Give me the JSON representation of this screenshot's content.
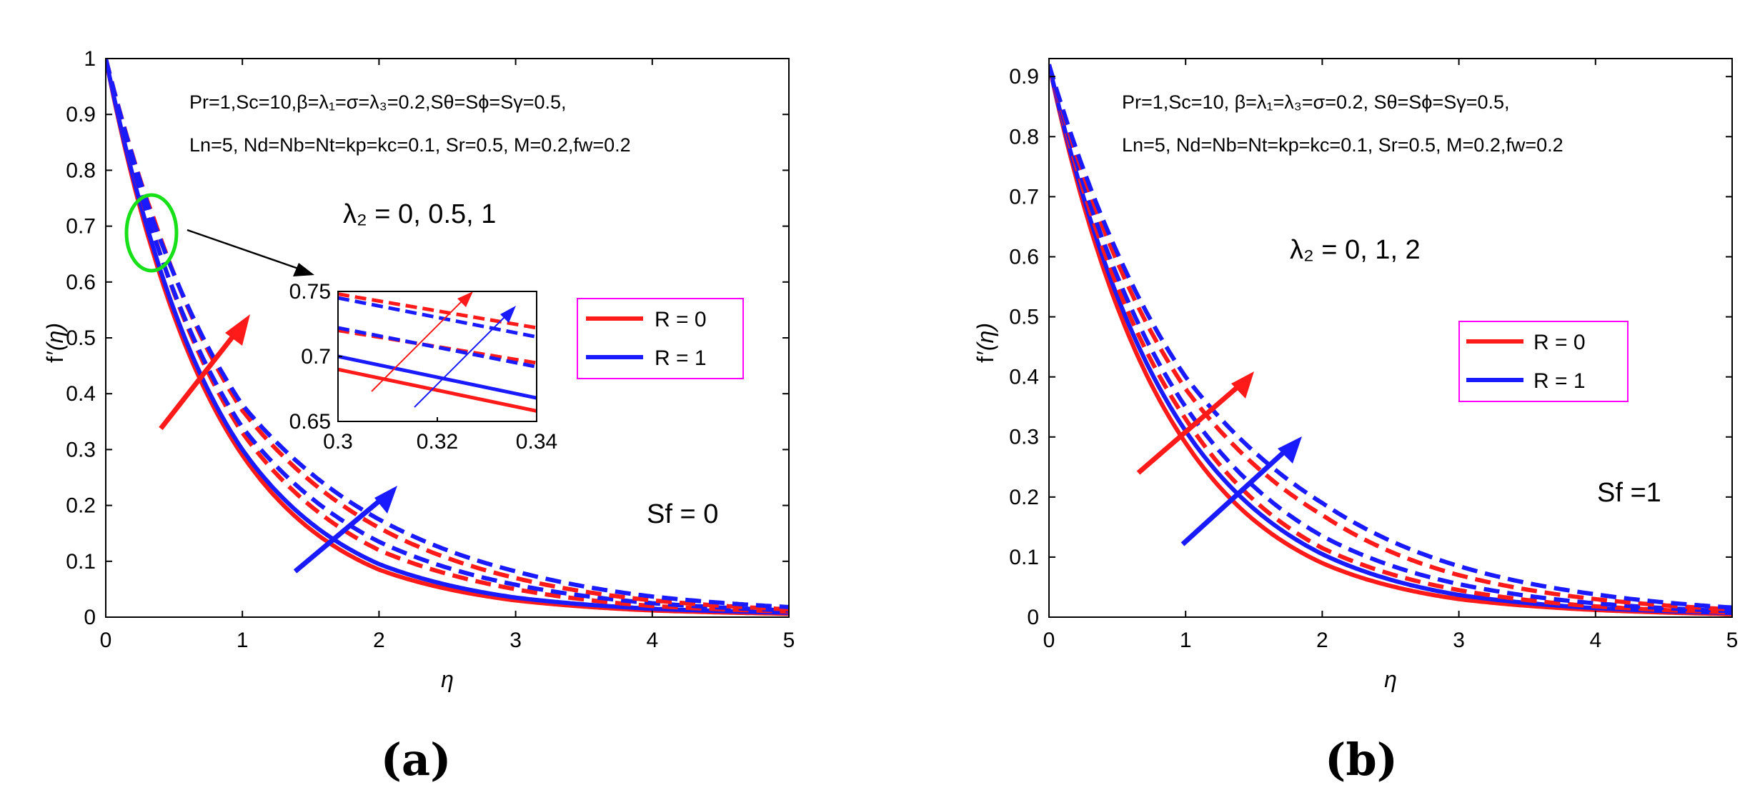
{
  "chart_data": [
    {
      "panel_label": "(a)",
      "type": "line",
      "xlabel": "η",
      "ylabel_base": "f",
      "ylabel_arg": "(η)",
      "xlim": [
        0,
        5
      ],
      "ylim": [
        0,
        1
      ],
      "xticks": [
        "0",
        "1",
        "2",
        "3",
        "4",
        "5"
      ],
      "yticks": [
        "0",
        "0.1",
        "0.2",
        "0.3",
        "0.4",
        "0.5",
        "0.6",
        "0.7",
        "0.8",
        "0.9",
        "1"
      ],
      "f0": 1.0,
      "params_line1": "Pr=1,Sc=10,β=λ₁=σ=λ₃=0.2,Sθ=Sϕ=Sγ=0.5,",
      "params_line2": "Ln=5, Nd=Nb=Nt=kp=kc=0.1, Sr=0.5, M=0.2,fw=0.2",
      "lambda_label": "λ₂ = 0, 0.5, 1",
      "lambda_values": [
        0,
        0.5,
        1
      ],
      "sf_label": "Sf = 0",
      "legend": [
        {
          "name": "R = 0",
          "color": "#ff1a1a"
        },
        {
          "name": "R = 1",
          "color": "#1a1aff"
        }
      ],
      "series": [
        {
          "R": 0,
          "lambda2": 0,
          "style": "solid",
          "color": "#ff1a1a",
          "x": [
            0,
            0.3,
            0.34,
            1,
            2,
            3,
            4,
            5
          ],
          "y": [
            1.0,
            0.69,
            0.658,
            0.29,
            0.085,
            0.03,
            0.012,
            0.006
          ]
        },
        {
          "R": 1,
          "lambda2": 0,
          "style": "solid",
          "color": "#1a1aff",
          "x": [
            0,
            0.3,
            0.34,
            1,
            2,
            3,
            4,
            5
          ],
          "y": [
            1.0,
            0.7,
            0.668,
            0.3,
            0.095,
            0.035,
            0.015,
            0.008
          ]
        },
        {
          "R": 0,
          "lambda2": 0.5,
          "style": "dashed",
          "color": "#ff1a1a",
          "x": [
            0,
            0.3,
            0.34,
            1,
            2,
            3,
            4,
            5
          ],
          "y": [
            1.0,
            0.72,
            0.695,
            0.33,
            0.12,
            0.05,
            0.02,
            0.01
          ]
        },
        {
          "R": 1,
          "lambda2": 0.5,
          "style": "dashed",
          "color": "#1a1aff",
          "x": [
            0,
            0.3,
            0.34,
            1,
            2,
            3,
            4,
            5
          ],
          "y": [
            1.0,
            0.722,
            0.692,
            0.34,
            0.135,
            0.058,
            0.025,
            0.012
          ]
        },
        {
          "R": 0,
          "lambda2": 1,
          "style": "dashed",
          "color": "#ff1a1a",
          "x": [
            0,
            0.3,
            0.34,
            1,
            2,
            3,
            4,
            5
          ],
          "y": [
            1.0,
            0.748,
            0.722,
            0.37,
            0.16,
            0.07,
            0.03,
            0.014
          ]
        },
        {
          "R": 1,
          "lambda2": 1,
          "style": "dashed",
          "color": "#1a1aff",
          "x": [
            0,
            0.3,
            0.34,
            1,
            2,
            3,
            4,
            5
          ],
          "y": [
            1.0,
            0.745,
            0.715,
            0.38,
            0.175,
            0.082,
            0.037,
            0.018
          ]
        }
      ],
      "inset": {
        "xlim": [
          0.3,
          0.34
        ],
        "ylim": [
          0.65,
          0.75
        ],
        "xticks": [
          "0.3",
          "0.32",
          "0.34"
        ],
        "yticks": [
          "0.65",
          "0.7",
          "0.75"
        ]
      }
    },
    {
      "panel_label": "(b)",
      "type": "line",
      "xlabel": "η",
      "ylabel_base": "f",
      "ylabel_arg": "(η)",
      "xlim": [
        0,
        5
      ],
      "ylim": [
        0,
        0.93
      ],
      "xticks": [
        "0",
        "1",
        "2",
        "3",
        "4",
        "5"
      ],
      "yticks": [
        "0",
        "0.1",
        "0.2",
        "0.3",
        "0.4",
        "0.5",
        "0.6",
        "0.7",
        "0.8",
        "0.9"
      ],
      "f0": 0.92,
      "params_line1": "Pr=1,Sc=10, β=λ₁=λ₃=σ=0.2, Sθ=Sϕ=Sγ=0.5,",
      "params_line2": "Ln=5, Nd=Nb=Nt=kp=kc=0.1, Sr=0.5, M=0.2,fw=0.2",
      "lambda_label": "λ₂ = 0, 1, 2",
      "lambda_values": [
        0,
        1,
        2
      ],
      "sf_label": "Sf =1",
      "legend": [
        {
          "name": "R = 0",
          "color": "#ff1a1a"
        },
        {
          "name": "R = 1",
          "color": "#1a1aff"
        }
      ],
      "series": [
        {
          "R": 0,
          "lambda2": 0,
          "style": "solid",
          "color": "#ff1a1a",
          "x": [
            0,
            1,
            2,
            3,
            4,
            5
          ],
          "y": [
            0.92,
            0.29,
            0.09,
            0.03,
            0.012,
            0.005
          ]
        },
        {
          "R": 1,
          "lambda2": 0,
          "style": "solid",
          "color": "#1a1aff",
          "x": [
            0,
            1,
            2,
            3,
            4,
            5
          ],
          "y": [
            0.92,
            0.31,
            0.105,
            0.037,
            0.015,
            0.007
          ]
        },
        {
          "R": 0,
          "lambda2": 1,
          "style": "dashed",
          "color": "#ff1a1a",
          "x": [
            0,
            1,
            2,
            3,
            4,
            5
          ],
          "y": [
            0.92,
            0.33,
            0.115,
            0.045,
            0.018,
            0.008
          ]
        },
        {
          "R": 1,
          "lambda2": 1,
          "style": "dashed",
          "color": "#1a1aff",
          "x": [
            0,
            1,
            2,
            3,
            4,
            5
          ],
          "y": [
            0.92,
            0.35,
            0.135,
            0.055,
            0.023,
            0.01
          ]
        },
        {
          "R": 0,
          "lambda2": 2,
          "style": "dashed",
          "color": "#ff1a1a",
          "x": [
            0,
            1,
            2,
            3,
            4,
            5
          ],
          "y": [
            0.92,
            0.38,
            0.17,
            0.07,
            0.03,
            0.013
          ]
        },
        {
          "R": 1,
          "lambda2": 2,
          "style": "dashed",
          "color": "#1a1aff",
          "x": [
            0,
            1,
            2,
            3,
            4,
            5
          ],
          "y": [
            0.92,
            0.4,
            0.19,
            0.085,
            0.038,
            0.016
          ]
        }
      ]
    }
  ]
}
